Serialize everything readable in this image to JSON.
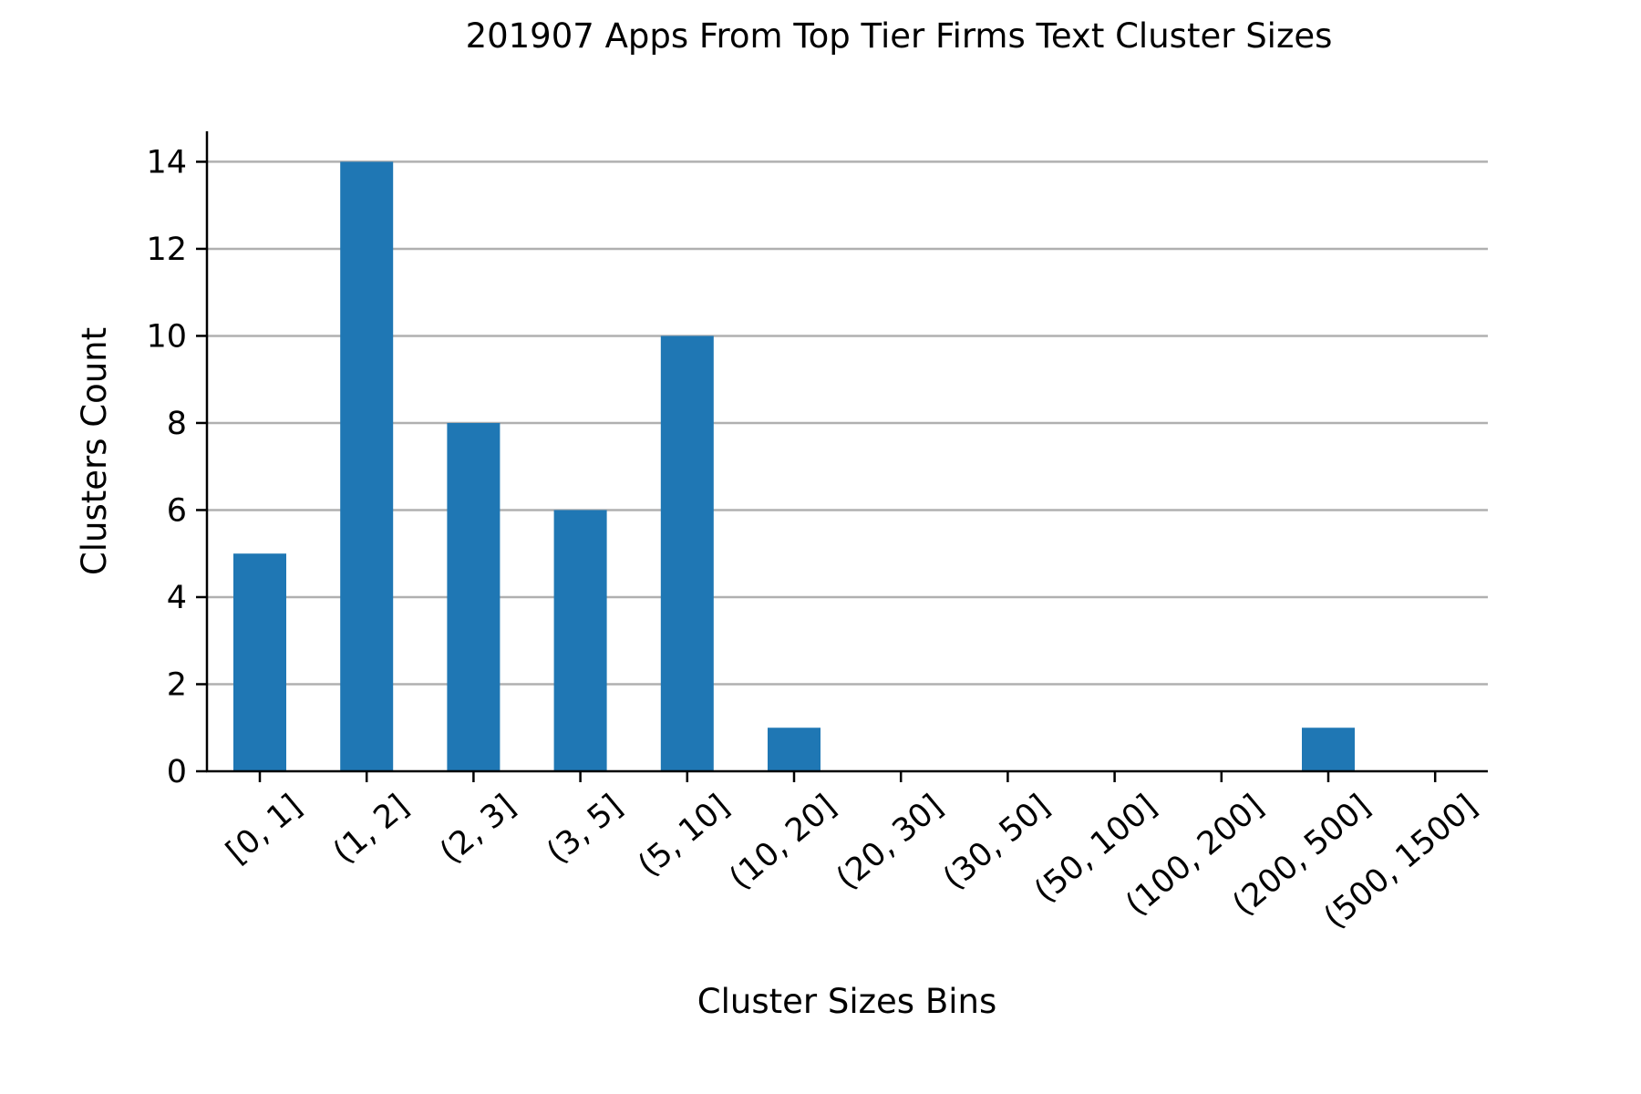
{
  "chart_data": {
    "type": "bar",
    "title": "201907 Apps From Top Tier Firms Text Cluster Sizes",
    "xlabel": "Cluster Sizes Bins",
    "ylabel": "Clusters Count",
    "categories": [
      "[0, 1]",
      "(1, 2]",
      "(2, 3]",
      "(3, 5]",
      "(5, 10]",
      "(10, 20]",
      "(20, 30]",
      "(30, 50]",
      "(50, 100]",
      "(100, 200]",
      "(200, 500]",
      "(500, 1500]"
    ],
    "values": [
      5,
      14,
      8,
      6,
      10,
      1,
      0,
      0,
      0,
      0,
      1,
      0
    ],
    "ylim": [
      0,
      14.7
    ],
    "yticks": [
      0,
      2,
      4,
      6,
      8,
      10,
      12,
      14
    ],
    "grid": "horizontal",
    "bar_color": "#1f77b4",
    "grid_color": "#b0b0b0",
    "legend": "none"
  }
}
